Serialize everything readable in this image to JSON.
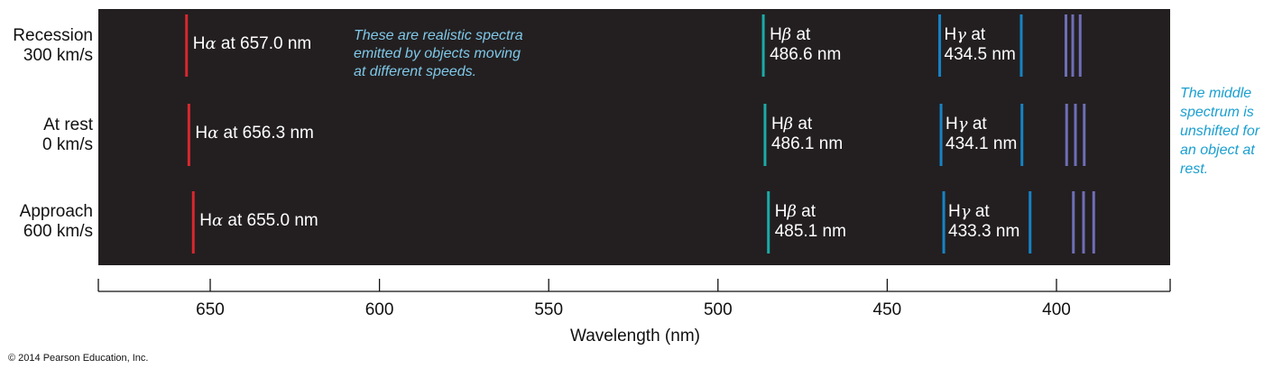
{
  "rows": [
    {
      "label_line1": "Recession",
      "label_line2": "300 km/s",
      "halpha": {
        "name": "Hα at 657.0 nm",
        "wavelength": 657.0
      },
      "hbeta": {
        "name_line1": "Hβ at",
        "name_line2": "486.6 nm",
        "wavelength": 486.6
      },
      "hgamma": {
        "name_line1": "Hγ at",
        "name_line2": "434.5 nm",
        "wavelength": 434.5
      },
      "hdelta_wavelength": 410.4,
      "violet_wavelengths": [
        397.2,
        395.2,
        393.0
      ]
    },
    {
      "label_line1": "At rest",
      "label_line2": "0 km/s",
      "halpha": {
        "name": "Hα at 656.3 nm",
        "wavelength": 656.3
      },
      "hbeta": {
        "name_line1": "Hβ at",
        "name_line2": "486.1 nm",
        "wavelength": 486.1
      },
      "hgamma": {
        "name_line1": "Hγ at",
        "name_line2": "434.1 nm",
        "wavelength": 434.1
      },
      "hdelta_wavelength": 410.2,
      "violet_wavelengths": [
        397.0,
        394.4,
        391.8
      ]
    },
    {
      "label_line1": "Approach",
      "label_line2": "600 km/s",
      "halpha": {
        "name": "Hα at 655.0 nm",
        "wavelength": 655.0
      },
      "hbeta": {
        "name_line1": "Hβ at",
        "name_line2": "485.1 nm",
        "wavelength": 485.1
      },
      "hgamma": {
        "name_line1": "Hγ at",
        "name_line2": "433.3 nm",
        "wavelength": 433.3
      },
      "hdelta_wavelength": 407.8,
      "violet_wavelengths": [
        395.0,
        392.0,
        389.0
      ]
    }
  ],
  "note_left": [
    "These are realistic spectra",
    "emitted by objects moving",
    "at different speeds."
  ],
  "note_right": [
    "The middle",
    "spectrum is",
    "unshifted for",
    "an object at",
    "rest."
  ],
  "axis": {
    "title": "Wavelength (nm)",
    "ticks": [
      650,
      600,
      550,
      500,
      450,
      400
    ],
    "range": [
      683,
      367
    ]
  },
  "copyright": "© 2014 Pearson Education, Inc.",
  "colors": {
    "background": "#231f20",
    "halpha": "#d9272e",
    "hbeta": "#1aaba8",
    "hgamma": "#1683c5",
    "violet": "#6f6eb8"
  }
}
